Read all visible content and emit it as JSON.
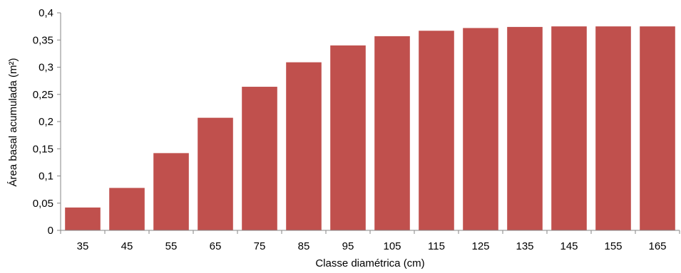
{
  "chart_data": {
    "type": "bar",
    "xlabel": "Classe diamétrica (cm)",
    "ylabel": "Área basal acumulada (m²)",
    "ylim": [
      0,
      0.4
    ],
    "y_ticks": [
      "0",
      "0,05",
      "0,1",
      "0,15",
      "0,2",
      "0,25",
      "0,3",
      "0,35",
      "0,4"
    ],
    "y_tick_values": [
      0,
      0.05,
      0.1,
      0.15,
      0.2,
      0.25,
      0.3,
      0.35,
      0.4
    ],
    "categories": [
      "35",
      "45",
      "55",
      "65",
      "75",
      "85",
      "95",
      "105",
      "115",
      "125",
      "135",
      "145",
      "155",
      "165"
    ],
    "values": [
      0.042,
      0.078,
      0.142,
      0.207,
      0.264,
      0.309,
      0.34,
      0.357,
      0.367,
      0.372,
      0.374,
      0.375,
      0.375,
      0.375
    ],
    "grid": false,
    "legend": "none",
    "bar_color": "#c0504d",
    "axis_color": "#868686"
  }
}
